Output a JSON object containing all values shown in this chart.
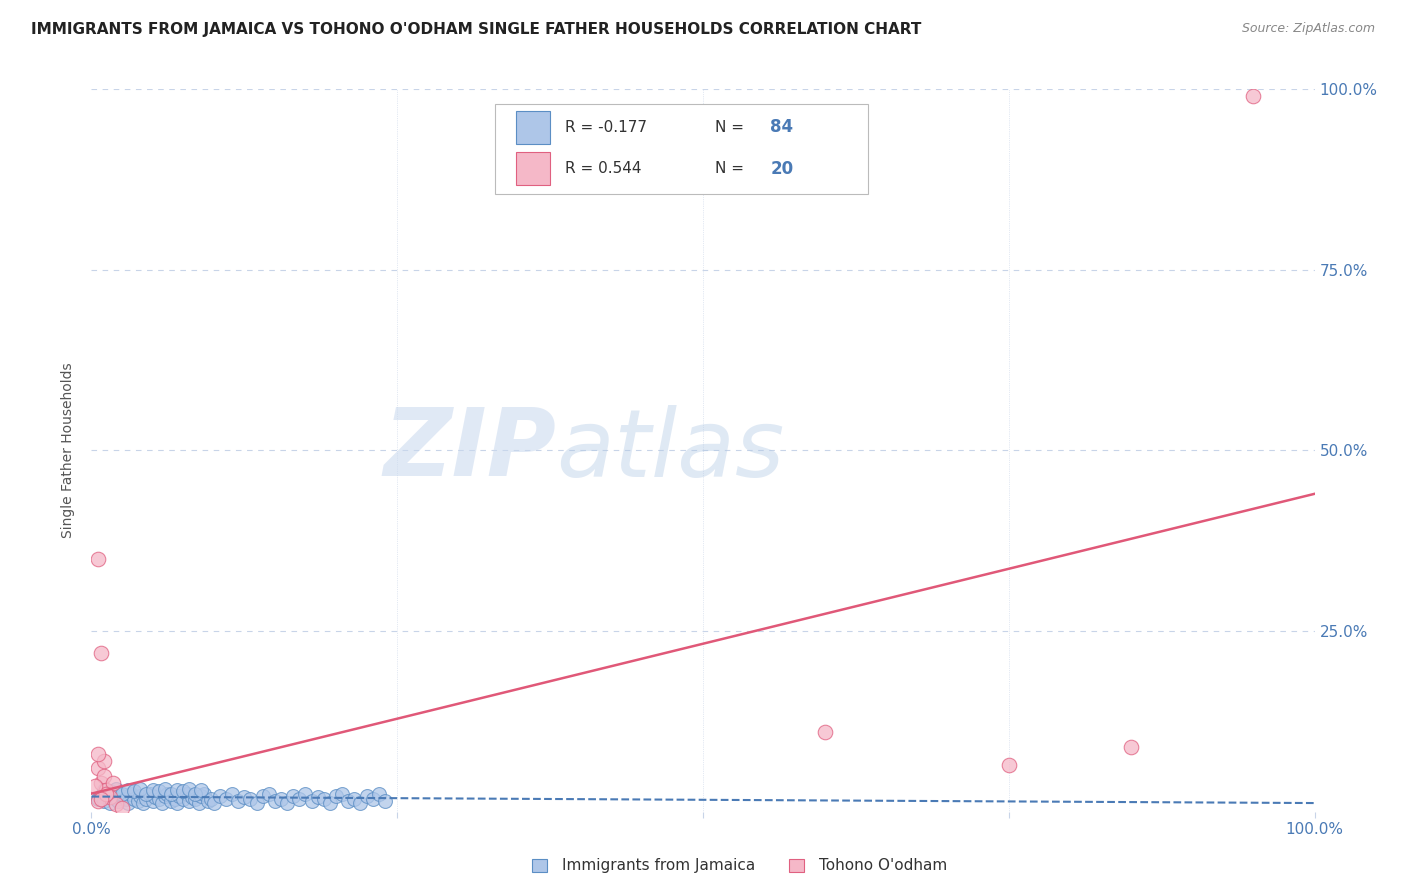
{
  "title": "IMMIGRANTS FROM JAMAICA VS TOHONO O'ODHAM SINGLE FATHER HOUSEHOLDS CORRELATION CHART",
  "source": "Source: ZipAtlas.com",
  "ylabel": "Single Father Households",
  "xlim": [
    0.0,
    1.0
  ],
  "ylim": [
    0.0,
    1.0
  ],
  "legend_r1": "R = -0.177",
  "legend_n1": "84",
  "legend_r2": "R = 0.544",
  "legend_n2": "20",
  "legend_label1": "Immigrants from Jamaica",
  "legend_label2": "Tohono O'odham",
  "blue_color": "#aec6e8",
  "blue_edge_color": "#5b8ec4",
  "blue_line_color": "#4a7ab5",
  "pink_color": "#f5b8c8",
  "pink_edge_color": "#e06080",
  "pink_line_color": "#e05878",
  "watermark_zip": "ZIP",
  "watermark_atlas": "atlas",
  "grid_color": "#c8d4e8",
  "title_color": "#222222",
  "tick_color": "#4a7ab5",
  "source_color": "#888888",
  "blue_scatter_x": [
    0.005,
    0.008,
    0.01,
    0.012,
    0.015,
    0.018,
    0.02,
    0.022,
    0.025,
    0.028,
    0.03,
    0.032,
    0.035,
    0.038,
    0.04,
    0.042,
    0.045,
    0.048,
    0.05,
    0.052,
    0.055,
    0.058,
    0.06,
    0.062,
    0.065,
    0.068,
    0.07,
    0.072,
    0.075,
    0.078,
    0.08,
    0.082,
    0.085,
    0.088,
    0.09,
    0.092,
    0.095,
    0.098,
    0.1,
    0.105,
    0.11,
    0.115,
    0.12,
    0.125,
    0.13,
    0.135,
    0.14,
    0.145,
    0.15,
    0.155,
    0.16,
    0.165,
    0.17,
    0.175,
    0.18,
    0.185,
    0.19,
    0.195,
    0.2,
    0.205,
    0.21,
    0.215,
    0.22,
    0.225,
    0.23,
    0.235,
    0.24,
    0.01,
    0.015,
    0.02,
    0.025,
    0.03,
    0.035,
    0.04,
    0.045,
    0.05,
    0.055,
    0.06,
    0.065,
    0.07,
    0.075,
    0.08,
    0.085,
    0.09
  ],
  "blue_scatter_y": [
    0.018,
    0.022,
    0.015,
    0.025,
    0.012,
    0.02,
    0.018,
    0.015,
    0.022,
    0.018,
    0.012,
    0.025,
    0.018,
    0.015,
    0.022,
    0.012,
    0.018,
    0.025,
    0.015,
    0.02,
    0.018,
    0.012,
    0.022,
    0.025,
    0.015,
    0.018,
    0.012,
    0.022,
    0.018,
    0.025,
    0.015,
    0.02,
    0.018,
    0.012,
    0.022,
    0.025,
    0.015,
    0.018,
    0.012,
    0.022,
    0.018,
    0.025,
    0.015,
    0.02,
    0.018,
    0.012,
    0.022,
    0.025,
    0.015,
    0.018,
    0.012,
    0.022,
    0.018,
    0.025,
    0.015,
    0.02,
    0.018,
    0.012,
    0.022,
    0.025,
    0.015,
    0.018,
    0.012,
    0.022,
    0.018,
    0.025,
    0.015,
    0.03,
    0.028,
    0.032,
    0.025,
    0.03,
    0.028,
    0.032,
    0.025,
    0.03,
    0.028,
    0.032,
    0.025,
    0.03,
    0.028,
    0.032,
    0.025,
    0.03
  ],
  "pink_scatter_x": [
    0.005,
    0.008,
    0.01,
    0.012,
    0.015,
    0.018,
    0.02,
    0.025,
    0.005,
    0.008,
    0.01,
    0.005,
    0.6,
    0.75,
    0.85,
    0.95,
    0.005,
    0.012,
    0.008,
    0.003
  ],
  "pink_scatter_y": [
    0.06,
    0.04,
    0.05,
    0.03,
    0.02,
    0.04,
    0.01,
    0.005,
    0.35,
    0.22,
    0.07,
    0.08,
    0.11,
    0.065,
    0.09,
    0.99,
    0.015,
    0.025,
    0.018,
    0.035
  ],
  "blue_trend_x": [
    0.0,
    1.0
  ],
  "blue_trend_y": [
    0.021,
    0.012
  ],
  "pink_trend_x": [
    0.0,
    1.0
  ],
  "pink_trend_y": [
    0.025,
    0.44
  ],
  "background_color": "#ffffff"
}
